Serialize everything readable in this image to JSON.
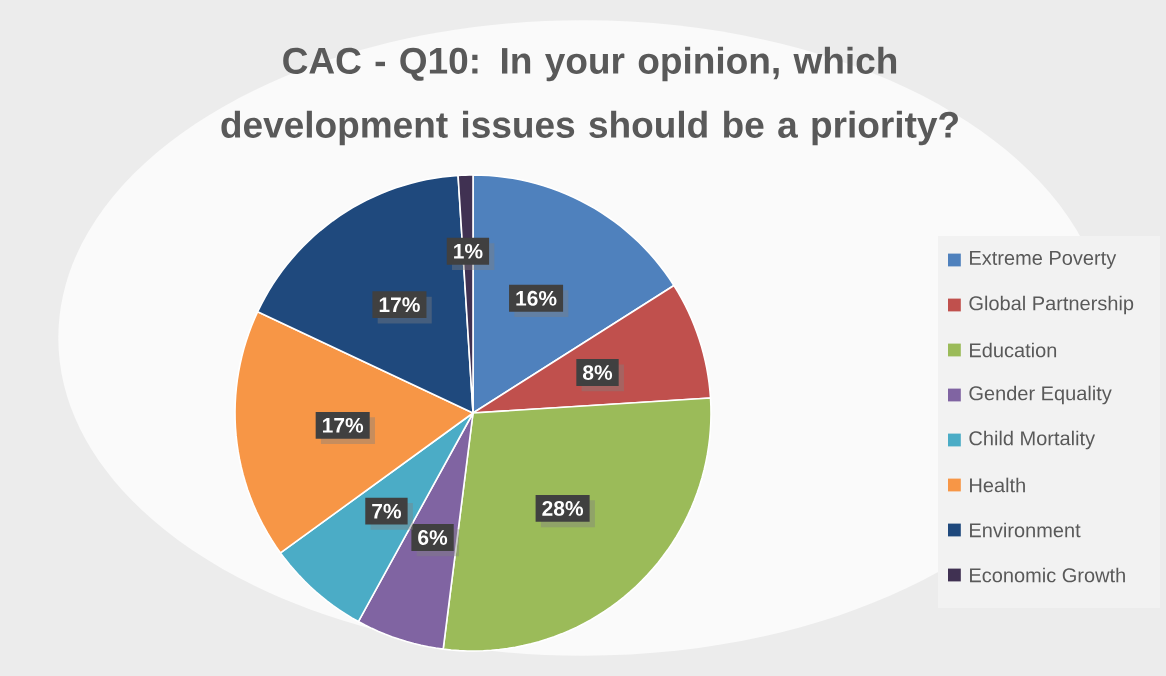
{
  "chart_data": {
    "type": "pie",
    "title": "CAC -  Q10: In your opinion, which development issues should be a priority?",
    "categories": [
      "Extreme Poverty",
      "Global Partnership",
      "Education",
      "Gender Equality",
      "Child Mortality",
      "Health",
      "Environment",
      "Economic Growth"
    ],
    "values": [
      16,
      8,
      28,
      6,
      7,
      17,
      17,
      1
    ],
    "value_labels": [
      "16%",
      "8%",
      "28%",
      "6%",
      "7%",
      "17%",
      "17%",
      "1%"
    ],
    "colors": [
      "#4f81bd",
      "#c0504d",
      "#9bbb59",
      "#8064a2",
      "#4bacc6",
      "#f79646",
      "#1f497d",
      "#403152"
    ],
    "legend": "right"
  }
}
